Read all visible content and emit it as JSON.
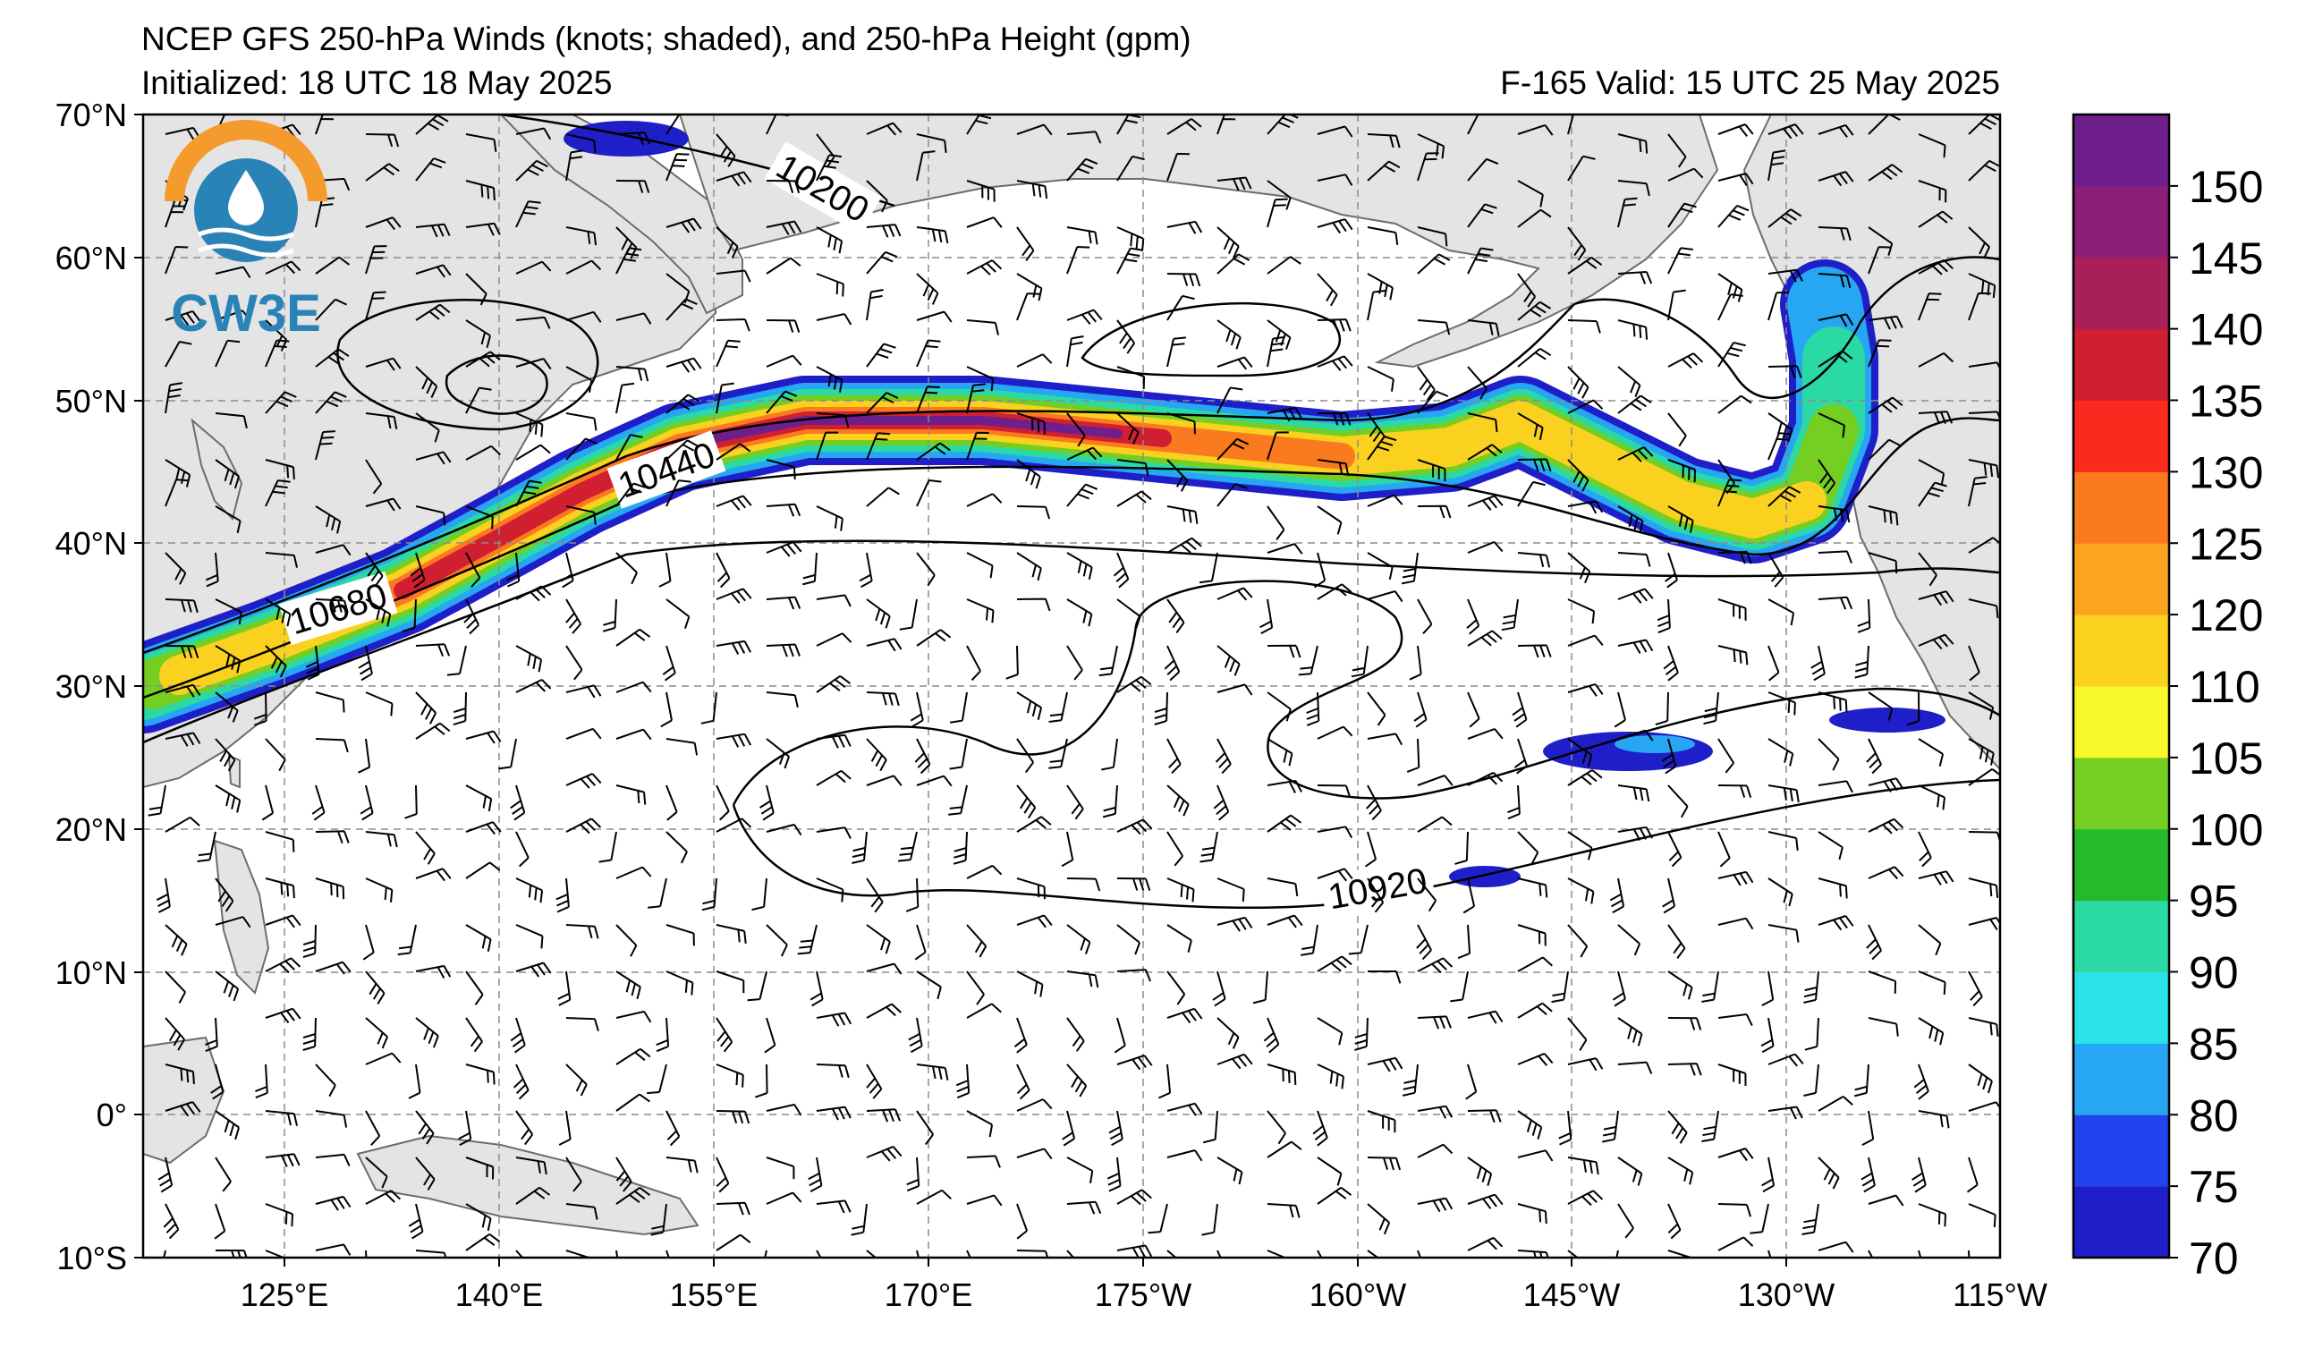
{
  "header": {
    "title": "NCEP GFS 250-hPa Winds (knots; shaded), and 250-hPa Height (gpm)",
    "initialized": "Initialized: 18 UTC 18 May 2025",
    "valid": "F-165  Valid: 15 UTC 25 May 2025"
  },
  "logo": {
    "text": "CW3E",
    "ring_color": "#f59b2d",
    "wave_color": "#2a83b6"
  },
  "axes": {
    "lat_labels": [
      "70°N",
      "60°N",
      "50°N",
      "40°N",
      "30°N",
      "20°N",
      "10°N",
      "0°",
      "10°S"
    ],
    "lon_labels": [
      "125°E",
      "140°E",
      "155°E",
      "170°E",
      "175°W",
      "160°W",
      "145°W",
      "130°W",
      "115°W"
    ]
  },
  "contour_labels": [
    "10200",
    "10440",
    "10680",
    "10920"
  ],
  "colorbar": {
    "ticks": [
      "70",
      "75",
      "80",
      "85",
      "90",
      "95",
      "100",
      "105",
      "110",
      "120",
      "125",
      "130",
      "135",
      "140",
      "145",
      "150"
    ],
    "colors": [
      "#1f1fc9",
      "#2244ee",
      "#27a6f4",
      "#2ae3e8",
      "#2bd9a4",
      "#25b92c",
      "#74cf22",
      "#f8f82a",
      "#fbd11f",
      "#fba51f",
      "#fb7a1f",
      "#fb2a1f",
      "#d11f32",
      "#a81f5a",
      "#8c1f78",
      "#6e1f8c"
    ]
  },
  "colors": {
    "land": "#e4e4e4",
    "coast": "#6c6c6c",
    "grid": "#8c8c8c",
    "ocean": "#ffffff"
  }
}
